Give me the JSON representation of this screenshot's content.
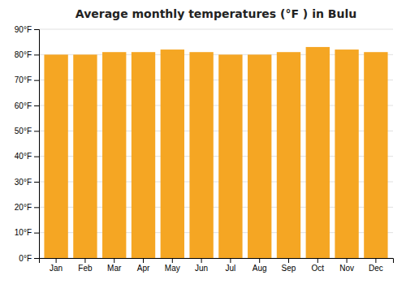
{
  "chart_data": {
    "type": "bar",
    "title": "Average monthly temperatures (°F ) in Bulu",
    "categories": [
      "Jan",
      "Feb",
      "Mar",
      "Apr",
      "May",
      "Jun",
      "Jul",
      "Aug",
      "Sep",
      "Oct",
      "Nov",
      "Dec"
    ],
    "values": [
      80,
      80,
      81,
      81,
      82,
      81,
      80,
      80,
      81,
      83,
      82,
      81
    ],
    "color": "#F5A623",
    "ylim": [
      0,
      90
    ],
    "yticks": [
      {
        "value": 0,
        "label": "0°F"
      },
      {
        "value": 10,
        "label": "10°F"
      },
      {
        "value": 20,
        "label": "20°F"
      },
      {
        "value": 30,
        "label": "30°F"
      },
      {
        "value": 40,
        "label": "40°F"
      },
      {
        "value": 50,
        "label": "50°F"
      },
      {
        "value": 60,
        "label": "60°F"
      },
      {
        "value": 70,
        "label": "70°F"
      },
      {
        "value": 80,
        "label": "80°F"
      },
      {
        "value": 90,
        "label": "90°F"
      }
    ],
    "grid": true
  }
}
